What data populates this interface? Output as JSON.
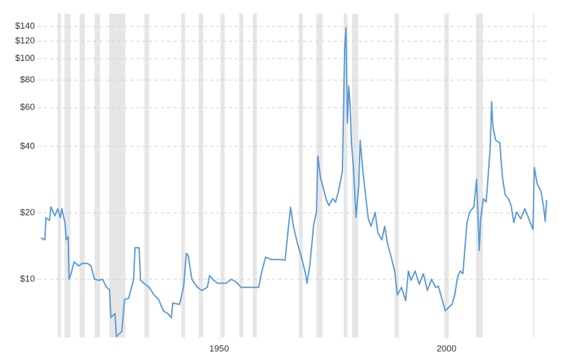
{
  "chart_data": {
    "type": "line",
    "log_y": true,
    "grid": true,
    "color": "#5b9bd5",
    "recession_color": "#e6e6e6",
    "x": [
      1910.8,
      1911.7,
      1911.9,
      1912.7,
      1913.0,
      1913.9,
      1914.5,
      1915.1,
      1915.4,
      1916.1,
      1916.4,
      1916.8,
      1917.0,
      1917.5,
      1918.1,
      1919.1,
      1919.9,
      1921.1,
      1921.8,
      1922.6,
      1923.6,
      1924.4,
      1925.2,
      1925.9,
      1926.2,
      1927.1,
      1927.4,
      1928.6,
      1929.2,
      1930.1,
      1931.2,
      1931.5,
      1932.4,
      1932.7,
      1933.7,
      1934.6,
      1935.7,
      1936.7,
      1937.7,
      1938.7,
      1939.5,
      1939.8,
      1941.3,
      1942.2,
      1942.8,
      1943.2,
      1944.0,
      1945.2,
      1946.2,
      1947.4,
      1947.9,
      1948.8,
      1949.7,
      1951.5,
      1952.7,
      1953.8,
      1954.8,
      1956.3,
      1958.7,
      1959.3,
      1960.2,
      1961.4,
      1963.6,
      1964.5,
      1965.1,
      1965.7,
      1966.3,
      1967.2,
      1968.1,
      1969.0,
      1969.3,
      1969.9,
      1970.8,
      1971.4,
      1971.7,
      1972.3,
      1972.9,
      1973.5,
      1974.1,
      1975.0,
      1975.6,
      1976.2,
      1977.1,
      1977.6,
      1977.9,
      1978.2,
      1978.5,
      1978.8,
      1979.1,
      1979.5,
      1980.1,
      1980.7,
      1981.0,
      1981.6,
      1982.2,
      1982.8,
      1983.4,
      1984.3,
      1984.9,
      1985.8,
      1986.4,
      1987.0,
      1988.0,
      1988.6,
      1989.2,
      1990.1,
      1991.0,
      1991.6,
      1992.2,
      1993.1,
      1994.0,
      1994.9,
      1995.8,
      1996.7,
      1997.6,
      1998.2,
      1999.1,
      1999.7,
      2000.3,
      2001.2,
      2001.8,
      2002.4,
      2003.0,
      2003.6,
      2004.5,
      2005.1,
      2006.0,
      2006.6,
      2007.2,
      2007.5,
      2008.1,
      2008.7,
      2009.0,
      2009.6,
      2009.9,
      2010.2,
      2010.8,
      2011.7,
      2012.3,
      2012.9,
      2013.6,
      2014.2,
      2014.8,
      2015.4,
      2016.3,
      2017.2,
      2018.1,
      2019.0,
      2019.3,
      2019.9,
      2020.8,
      2021.4,
      2021.7,
      2022.0
    ],
    "values": [
      15.4,
      15.1,
      19.0,
      18.5,
      21.3,
      19.4,
      20.9,
      19.0,
      20.9,
      18.1,
      15.1,
      15.6,
      10.0,
      10.7,
      12.0,
      11.5,
      11.8,
      11.8,
      11.5,
      10.0,
      9.9,
      10.0,
      9.2,
      9.0,
      6.7,
      7.0,
      5.5,
      5.8,
      8.1,
      8.2,
      10.0,
      13.9,
      13.9,
      9.9,
      9.5,
      9.2,
      8.5,
      8.1,
      7.2,
      7.0,
      6.7,
      7.8,
      7.7,
      9.3,
      13.1,
      12.8,
      10.0,
      9.2,
      8.9,
      9.2,
      10.4,
      9.9,
      9.6,
      9.6,
      10.0,
      9.7,
      9.2,
      9.2,
      9.2,
      10.7,
      12.6,
      12.3,
      12.3,
      12.2,
      16.2,
      21.2,
      17.5,
      14.6,
      12.6,
      10.6,
      9.6,
      11.4,
      17.7,
      20.2,
      36.2,
      28.8,
      25.9,
      23.2,
      21.6,
      23.2,
      22.4,
      24.9,
      30.9,
      112,
      138,
      51,
      75,
      61,
      41,
      33,
      19.1,
      26.8,
      42.7,
      30.9,
      24.1,
      18.8,
      17.4,
      20.1,
      16.2,
      15.1,
      17.4,
      14.6,
      12.2,
      10.9,
      8.5,
      9.2,
      8.0,
      10.9,
      9.9,
      10.9,
      9.5,
      10.6,
      8.9,
      10.0,
      9.2,
      9.3,
      8.0,
      7.2,
      7.4,
      7.7,
      8.5,
      10.2,
      10.9,
      10.6,
      18.1,
      20.2,
      21.3,
      28.4,
      13.5,
      18.7,
      23.2,
      22.4,
      26.8,
      39.7,
      63.9,
      49,
      42.7,
      41.6,
      28.8,
      24.1,
      23.2,
      21.6,
      18.1,
      20.2,
      18.8,
      20.9,
      18.8,
      16.8,
      32.1,
      27.2,
      24.9,
      20.9,
      18.3,
      22.9
    ],
    "recessions": [
      [
        1914.5,
        1915.2
      ],
      [
        1916.0,
        1917.3
      ],
      [
        1919.3,
        1920.5
      ],
      [
        1922.6,
        1923.8
      ],
      [
        1925.8,
        1929.4
      ],
      [
        1933.6,
        1934.6
      ],
      [
        1941.7,
        1942.5
      ],
      [
        1945.5,
        1946.5
      ],
      [
        1950.3,
        1951.2
      ],
      [
        1954.4,
        1955.3
      ],
      [
        1957.4,
        1958.3
      ],
      [
        1967.5,
        1968.4
      ],
      [
        1971.4,
        1972.7
      ],
      [
        1977.4,
        1978.2
      ],
      [
        1979.2,
        1980.6
      ],
      [
        1988.6,
        1989.5
      ],
      [
        1999.5,
        2000.5
      ],
      [
        2006.5,
        2008.0
      ],
      [
        2019.0,
        2019.3
      ]
    ],
    "xlim": [
      1910.1,
      2022.3
    ],
    "xticks": [
      1950,
      2000
    ],
    "ylim": [
      5.45,
      160
    ],
    "yticks": [
      {
        "value": 10,
        "label": "$10"
      },
      {
        "value": 20,
        "label": "$20"
      },
      {
        "value": 40,
        "label": "$40"
      },
      {
        "value": 60,
        "label": "$60"
      },
      {
        "value": 80,
        "label": "$80"
      },
      {
        "value": 100,
        "label": "$100"
      },
      {
        "value": 120,
        "label": "$120"
      },
      {
        "value": 140,
        "label": "$140"
      }
    ]
  }
}
